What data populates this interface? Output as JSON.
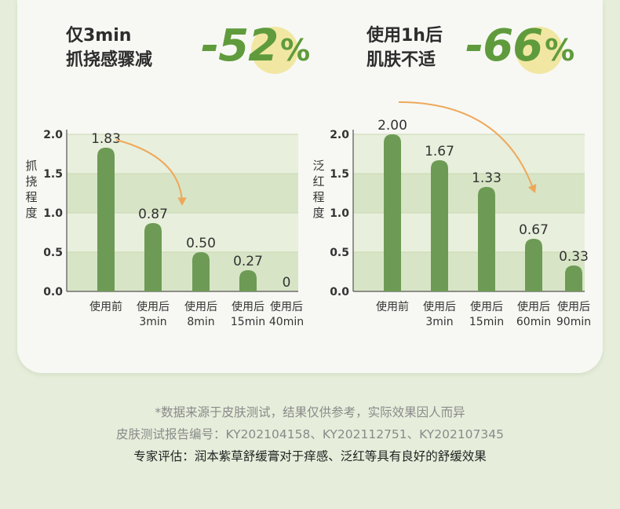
{
  "panels": [
    {
      "headline": [
        "仅3min",
        "抓挠感骤减"
      ],
      "pct": "-52",
      "pct_unit": "%",
      "ylabel": "抓挠程度"
    },
    {
      "headline": [
        "使用1h后",
        "肌肤不适"
      ],
      "pct": "-66",
      "pct_unit": "%",
      "ylabel": "泛红程度"
    }
  ],
  "chart_data": [
    {
      "type": "bar",
      "ylabel": "抓挠程度",
      "ylim": [
        0,
        2.0
      ],
      "yticks": [
        "0.0",
        "0.5",
        "1.0",
        "1.5",
        "2.0"
      ],
      "categories": [
        [
          "使用前"
        ],
        [
          "使用后",
          "3min"
        ],
        [
          "使用后",
          "8min"
        ],
        [
          "使用后",
          "15min"
        ],
        [
          "使用后",
          "40min"
        ]
      ],
      "values": [
        1.83,
        0.87,
        0.5,
        0.27,
        0
      ],
      "labels": [
        "1.83",
        "0.87",
        "0.50",
        "0.27",
        "0"
      ]
    },
    {
      "type": "bar",
      "ylabel": "泛红程度",
      "ylim": [
        0,
        2.0
      ],
      "yticks": [
        "0.0",
        "0.5",
        "1.0",
        "1.5",
        "2.0"
      ],
      "categories": [
        [
          "使用前"
        ],
        [
          "使用后",
          "3min"
        ],
        [
          "使用后",
          "15min"
        ],
        [
          "使用后",
          "60min"
        ],
        [
          "使用后",
          "90min"
        ]
      ],
      "values": [
        2.0,
        1.67,
        1.33,
        0.67,
        0.33
      ],
      "labels": [
        "2.00",
        "1.67",
        "1.33",
        "0.67",
        "0.33"
      ]
    }
  ],
  "footnotes": {
    "source": "*数据来源于皮肤测试，结果仅供参考，实际效果因人而异",
    "report": "皮肤测试报告编号：KY202104158、KY202112751、KY202107345",
    "expert": "专家评估：润本紫草舒缓膏对于痒感、泛红等具有良好的舒缓效果"
  },
  "colors": {
    "bar": "#6d9b55",
    "band_light": "#e8efdc",
    "band_dark": "#d7e5c6",
    "arrow": "#eea85a",
    "accent": "#5f9b3c"
  }
}
